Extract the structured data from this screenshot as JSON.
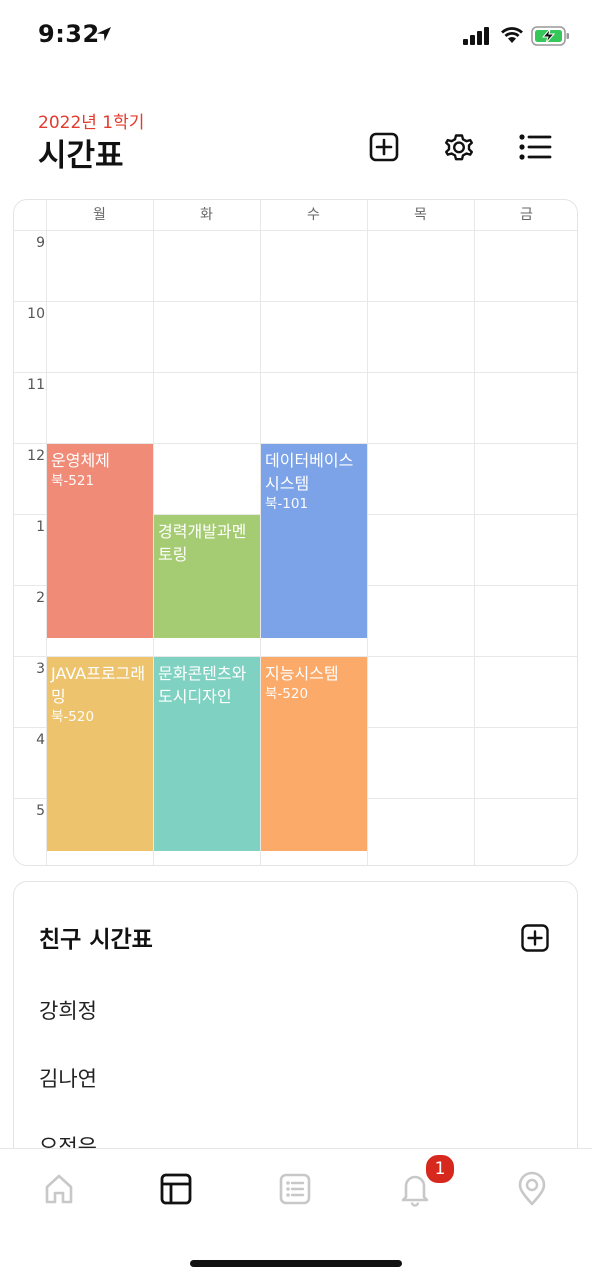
{
  "status": {
    "time": "9:32"
  },
  "header": {
    "semester": "2022년 1학기",
    "title": "시간표"
  },
  "timetable": {
    "days": [
      "월",
      "화",
      "수",
      "목",
      "금"
    ],
    "hours": [
      "9",
      "10",
      "11",
      "12",
      "1",
      "2",
      "3",
      "4",
      "5"
    ],
    "courses": [
      {
        "name": "운영체제",
        "room": "북-521",
        "day": 0,
        "start": 12,
        "end": 14.75,
        "color": "#F08B77"
      },
      {
        "name": "경력개발과멘토링",
        "room": "",
        "day": 1,
        "start": 13,
        "end": 14.75,
        "color": "#A6CC73"
      },
      {
        "name": "데이터베이스시스템",
        "room": "북-101",
        "day": 2,
        "start": 12,
        "end": 14.75,
        "color": "#7CA3E7"
      },
      {
        "name": "JAVA프로그래밍",
        "room": "북-520",
        "day": 0,
        "start": 15,
        "end": 17.75,
        "color": "#EDC46D"
      },
      {
        "name": "문화콘텐츠와도시디자인",
        "room": "",
        "day": 1,
        "start": 15,
        "end": 17.75,
        "color": "#7FD1C1"
      },
      {
        "name": "지능시스템",
        "room": "북-520",
        "day": 2,
        "start": 15,
        "end": 17.75,
        "color": "#FBAA6A"
      }
    ]
  },
  "friends": {
    "title": "친구 시간표",
    "items": [
      "강희정",
      "김나연",
      "오정은"
    ]
  },
  "tabbar": {
    "notification_count": "1"
  },
  "colors": {
    "accent": "#e23b2f",
    "badge": "#d7281e"
  }
}
